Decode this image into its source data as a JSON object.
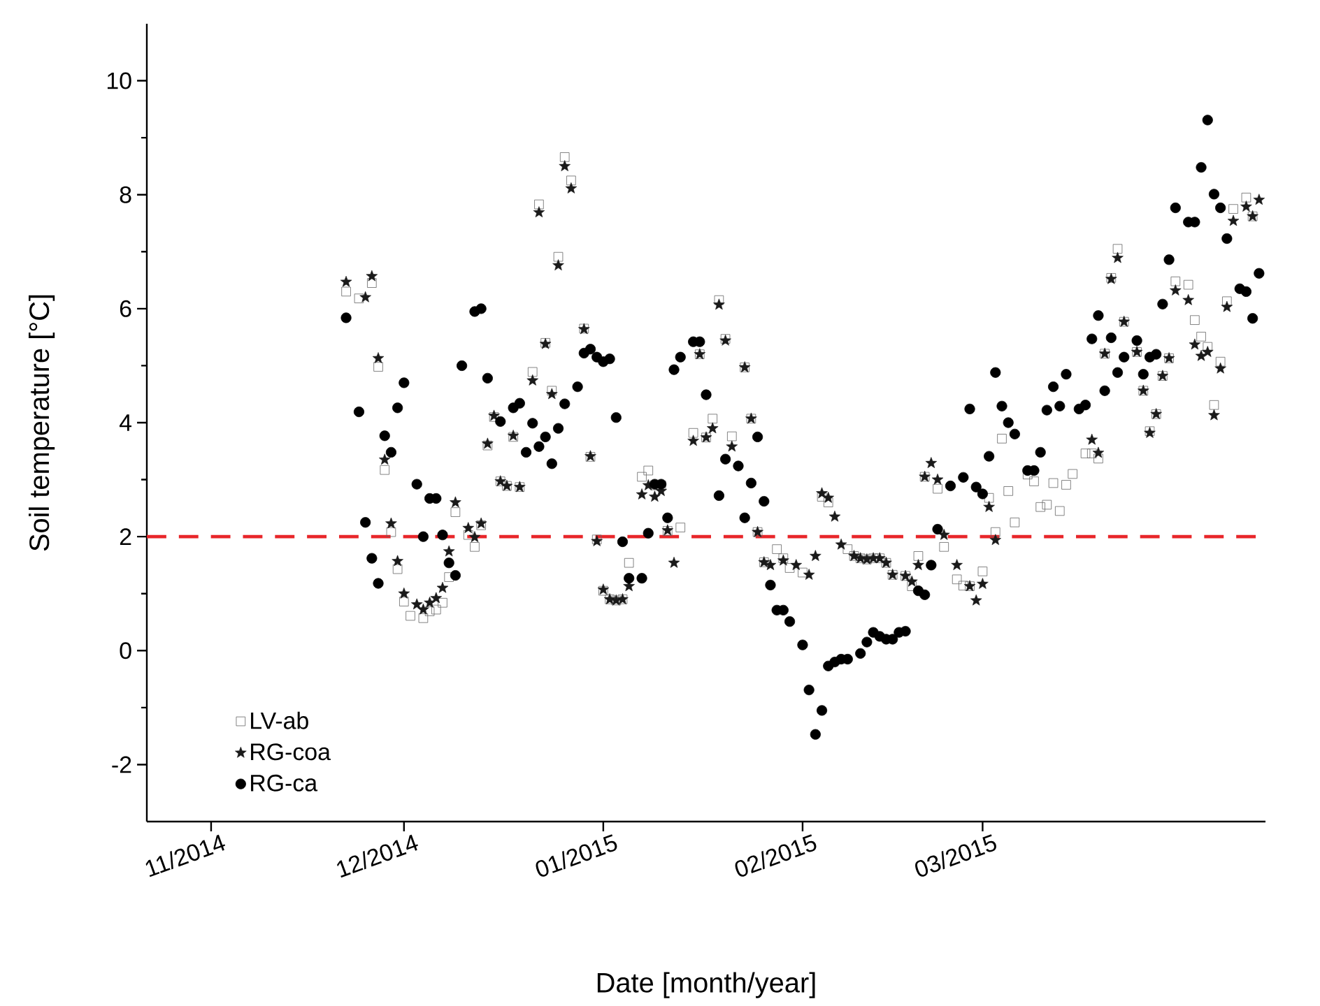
{
  "chart_data": {
    "type": "scatter",
    "xlabel": "Date [month/year]",
    "ylabel": "Soil temperature [°C]",
    "xlim": [
      "2014-10-22",
      "2015-04-14"
    ],
    "ylim": [
      -3,
      11
    ],
    "xticks": [
      {
        "value": "2014-11-01",
        "label": "11/2014"
      },
      {
        "value": "2014-12-01",
        "label": "12/2014"
      },
      {
        "value": "2015-01-01",
        "label": "01/2015"
      },
      {
        "value": "2015-02-01",
        "label": "02/2015"
      },
      {
        "value": "2015-03-01",
        "label": "03/2015"
      }
    ],
    "yticks": [
      -2,
      0,
      2,
      4,
      6,
      8,
      10
    ],
    "legend": "bottom left",
    "ref_lines": [
      {
        "axis": "y",
        "value": 2,
        "color": "#e8262a",
        "line_style": "dashed"
      }
    ],
    "series": [
      {
        "name": "LV-ab",
        "color": "#666666",
        "marker": "square",
        "x": [
          "2014-11-22",
          "2014-11-24",
          "2014-11-26",
          "2014-11-27",
          "2014-11-28",
          "2014-11-29",
          "2014-11-30",
          "2014-12-01",
          "2014-12-02",
          "2014-12-04",
          "2014-12-05",
          "2014-12-06",
          "2014-12-07",
          "2014-12-08",
          "2014-12-09",
          "2014-12-11",
          "2014-12-12",
          "2014-12-13",
          "2014-12-14",
          "2014-12-15",
          "2014-12-16",
          "2014-12-17",
          "2014-12-18",
          "2014-12-19",
          "2014-12-21",
          "2014-12-22",
          "2014-12-23",
          "2014-12-24",
          "2014-12-25",
          "2014-12-26",
          "2014-12-27",
          "2014-12-29",
          "2014-12-30",
          "2014-12-31",
          "2015-01-01",
          "2015-01-02",
          "2015-01-03",
          "2015-01-04",
          "2015-01-05",
          "2015-01-07",
          "2015-01-08",
          "2015-01-09",
          "2015-01-10",
          "2015-01-11",
          "2015-01-13",
          "2015-01-15",
          "2015-01-16",
          "2015-01-17",
          "2015-01-18",
          "2015-01-19",
          "2015-01-20",
          "2015-01-21",
          "2015-01-23",
          "2015-01-24",
          "2015-01-25",
          "2015-01-26",
          "2015-01-28",
          "2015-01-29",
          "2015-01-30",
          "2015-02-01",
          "2015-02-04",
          "2015-02-05",
          "2015-02-08",
          "2015-02-09",
          "2015-02-10",
          "2015-02-11",
          "2015-02-12",
          "2015-02-13",
          "2015-02-14",
          "2015-02-15",
          "2015-02-17",
          "2015-02-18",
          "2015-02-19",
          "2015-02-20",
          "2015-02-22",
          "2015-02-23",
          "2015-02-25",
          "2015-02-26",
          "2015-02-27",
          "2015-03-01",
          "2015-03-02",
          "2015-03-03",
          "2015-03-04",
          "2015-03-05",
          "2015-03-06",
          "2015-03-08",
          "2015-03-09",
          "2015-03-10",
          "2015-03-11",
          "2015-03-12",
          "2015-03-13",
          "2015-03-14",
          "2015-03-15",
          "2015-03-17",
          "2015-03-18",
          "2015-03-19",
          "2015-03-20",
          "2015-03-21",
          "2015-03-22",
          "2015-03-23",
          "2015-03-25",
          "2015-03-26",
          "2015-03-27",
          "2015-03-28",
          "2015-03-29",
          "2015-03-30",
          "2015-03-31",
          "2015-04-02",
          "2015-04-03",
          "2015-04-04",
          "2015-04-05",
          "2015-04-06",
          "2015-04-07",
          "2015-04-08",
          "2015-04-09",
          "2015-04-11",
          "2015-04-12"
        ],
        "values": [
          6.3,
          6.18,
          6.45,
          4.98,
          3.17,
          2.08,
          1.43,
          0.86,
          0.61,
          0.57,
          0.69,
          0.72,
          0.84,
          1.29,
          2.43,
          2.03,
          1.82,
          2.2,
          3.6,
          4.1,
          2.97,
          2.89,
          3.75,
          2.87,
          4.89,
          7.83,
          5.4,
          4.56,
          6.91,
          8.66,
          8.25,
          5.65,
          3.4,
          1.95,
          1.05,
          0.9,
          0.88,
          0.9,
          1.54,
          3.05,
          3.16,
          2.9,
          2.9,
          2.1,
          2.16,
          3.82,
          5.2,
          3.74,
          4.07,
          6.15,
          5.47,
          3.76,
          4.97,
          4.07,
          2.08,
          1.55,
          1.78,
          1.62,
          1.45,
          1.37,
          2.7,
          2.6,
          1.78,
          1.66,
          1.62,
          1.6,
          1.62,
          1.62,
          1.54,
          1.33,
          1.31,
          1.13,
          1.66,
          3.05,
          2.84,
          1.82,
          1.25,
          1.14,
          1.13,
          1.39,
          2.68,
          2.08,
          3.72,
          2.8,
          2.25,
          3.09,
          2.97,
          2.52,
          2.56,
          2.94,
          2.45,
          2.91,
          3.1,
          3.46,
          3.46,
          3.37,
          5.21,
          6.54,
          7.05,
          5.77,
          5.24,
          4.56,
          3.85,
          4.15,
          4.82,
          5.13,
          6.48,
          6.42,
          5.8,
          5.51,
          5.33,
          4.31,
          5.07,
          6.13,
          7.75,
          7.95,
          7.62
        ]
      },
      {
        "name": "RG-coa",
        "color": "#1a1a1a",
        "marker": "star",
        "x": [
          "2014-11-22",
          "2014-11-25",
          "2014-11-26",
          "2014-11-27",
          "2014-11-28",
          "2014-11-29",
          "2014-11-30",
          "2014-12-01",
          "2014-12-03",
          "2014-12-04",
          "2014-12-05",
          "2014-12-06",
          "2014-12-07",
          "2014-12-08",
          "2014-12-09",
          "2014-12-11",
          "2014-12-12",
          "2014-12-13",
          "2014-12-14",
          "2014-12-15",
          "2014-12-16",
          "2014-12-17",
          "2014-12-18",
          "2014-12-19",
          "2014-12-21",
          "2014-12-22",
          "2014-12-23",
          "2014-12-24",
          "2014-12-25",
          "2014-12-26",
          "2014-12-27",
          "2014-12-29",
          "2014-12-30",
          "2014-12-31",
          "2015-01-01",
          "2015-01-02",
          "2015-01-03",
          "2015-01-04",
          "2015-01-05",
          "2015-01-07",
          "2015-01-08",
          "2015-01-09",
          "2015-01-10",
          "2015-01-11",
          "2015-01-12",
          "2015-01-15",
          "2015-01-16",
          "2015-01-17",
          "2015-01-18",
          "2015-01-19",
          "2015-01-20",
          "2015-01-21",
          "2015-01-23",
          "2015-01-24",
          "2015-01-25",
          "2015-01-26",
          "2015-01-27",
          "2015-01-29",
          "2015-01-31",
          "2015-02-02",
          "2015-02-03",
          "2015-02-04",
          "2015-02-05",
          "2015-02-06",
          "2015-02-07",
          "2015-02-09",
          "2015-02-10",
          "2015-02-11",
          "2015-02-12",
          "2015-02-13",
          "2015-02-14",
          "2015-02-15",
          "2015-02-17",
          "2015-02-18",
          "2015-02-19",
          "2015-02-20",
          "2015-02-21",
          "2015-02-22",
          "2015-02-23",
          "2015-02-25",
          "2015-02-27",
          "2015-02-28",
          "2015-03-01",
          "2015-03-02",
          "2015-03-03",
          "2015-03-18",
          "2015-03-19",
          "2015-03-20",
          "2015-03-21",
          "2015-03-22",
          "2015-03-23",
          "2015-03-25",
          "2015-03-26",
          "2015-03-27",
          "2015-03-28",
          "2015-03-29",
          "2015-03-30",
          "2015-03-31",
          "2015-04-02",
          "2015-04-03",
          "2015-04-04",
          "2015-04-05",
          "2015-04-06",
          "2015-04-07",
          "2015-04-08",
          "2015-04-09",
          "2015-04-11",
          "2015-04-12",
          "2015-04-13"
        ],
        "values": [
          6.47,
          6.2,
          6.57,
          5.13,
          3.35,
          2.23,
          1.57,
          1.0,
          0.81,
          0.72,
          0.84,
          0.92,
          1.1,
          1.74,
          2.6,
          2.15,
          1.99,
          2.23,
          3.63,
          4.12,
          2.97,
          2.89,
          3.77,
          2.87,
          4.74,
          7.69,
          5.38,
          4.5,
          6.76,
          8.5,
          8.11,
          5.64,
          3.41,
          1.92,
          1.07,
          0.9,
          0.88,
          0.9,
          1.13,
          2.74,
          2.9,
          2.7,
          2.8,
          2.11,
          1.54,
          3.68,
          5.2,
          3.74,
          3.9,
          6.07,
          5.44,
          3.58,
          4.97,
          4.07,
          2.08,
          1.55,
          1.5,
          1.58,
          1.5,
          1.33,
          1.66,
          2.76,
          2.68,
          2.35,
          1.86,
          1.66,
          1.62,
          1.6,
          1.62,
          1.62,
          1.54,
          1.33,
          1.31,
          1.21,
          1.5,
          3.05,
          3.29,
          3.0,
          2.03,
          1.5,
          1.13,
          0.88,
          1.17,
          2.52,
          1.94,
          3.7,
          3.47,
          5.21,
          6.52,
          6.89,
          5.77,
          5.24,
          4.56,
          3.82,
          4.15,
          4.82,
          5.13,
          6.32,
          6.15,
          5.37,
          5.17,
          5.24,
          4.13,
          4.95,
          6.03,
          7.54,
          7.79,
          7.62,
          7.91
        ]
      },
      {
        "name": "RG-ca",
        "color": "#000000",
        "marker": "circle",
        "x": [
          "2014-11-22",
          "2014-11-24",
          "2014-11-25",
          "2014-11-26",
          "2014-11-27",
          "2014-11-28",
          "2014-11-29",
          "2014-11-30",
          "2014-12-01",
          "2014-12-03",
          "2014-12-04",
          "2014-12-05",
          "2014-12-06",
          "2014-12-07",
          "2014-12-08",
          "2014-12-09",
          "2014-12-10",
          "2014-12-12",
          "2014-12-13",
          "2014-12-14",
          "2014-12-16",
          "2014-12-18",
          "2014-12-19",
          "2014-12-20",
          "2014-12-21",
          "2014-12-22",
          "2014-12-23",
          "2014-12-24",
          "2014-12-25",
          "2014-12-26",
          "2014-12-28",
          "2014-12-29",
          "2014-12-30",
          "2014-12-31",
          "2015-01-01",
          "2015-01-02",
          "2015-01-03",
          "2015-01-04",
          "2015-01-05",
          "2015-01-07",
          "2015-01-08",
          "2015-01-09",
          "2015-01-10",
          "2015-01-11",
          "2015-01-12",
          "2015-01-13",
          "2015-01-15",
          "2015-01-16",
          "2015-01-17",
          "2015-01-19",
          "2015-01-20",
          "2015-01-22",
          "2015-01-23",
          "2015-01-24",
          "2015-01-25",
          "2015-01-26",
          "2015-01-27",
          "2015-01-28",
          "2015-01-29",
          "2015-01-30",
          "2015-02-01",
          "2015-02-02",
          "2015-02-03",
          "2015-02-04",
          "2015-02-05",
          "2015-02-06",
          "2015-02-07",
          "2015-02-08",
          "2015-02-10",
          "2015-02-11",
          "2015-02-12",
          "2015-02-13",
          "2015-02-14",
          "2015-02-15",
          "2015-02-16",
          "2015-02-17",
          "2015-02-19",
          "2015-02-20",
          "2015-02-21",
          "2015-02-22",
          "2015-02-24",
          "2015-02-26",
          "2015-02-27",
          "2015-02-28",
          "2015-03-01",
          "2015-03-02",
          "2015-03-03",
          "2015-03-04",
          "2015-03-05",
          "2015-03-06",
          "2015-03-08",
          "2015-03-09",
          "2015-03-10",
          "2015-03-11",
          "2015-03-12",
          "2015-03-13",
          "2015-03-14",
          "2015-03-16",
          "2015-03-17",
          "2015-03-18",
          "2015-03-19",
          "2015-03-20",
          "2015-03-21",
          "2015-03-22",
          "2015-03-23",
          "2015-03-25",
          "2015-03-26",
          "2015-03-27",
          "2015-03-28",
          "2015-03-29",
          "2015-03-30",
          "2015-03-31",
          "2015-04-02",
          "2015-04-03",
          "2015-04-04",
          "2015-04-05",
          "2015-04-06",
          "2015-04-07",
          "2015-04-08",
          "2015-04-10",
          "2015-04-11",
          "2015-04-12",
          "2015-04-13"
        ],
        "values": [
          5.84,
          4.19,
          2.25,
          1.62,
          1.18,
          3.77,
          3.48,
          4.26,
          4.7,
          2.92,
          2.0,
          2.67,
          2.67,
          2.03,
          1.54,
          1.32,
          5.0,
          5.95,
          6.0,
          4.78,
          4.02,
          4.26,
          4.34,
          3.48,
          3.99,
          3.58,
          3.75,
          3.28,
          3.9,
          4.33,
          4.63,
          5.22,
          5.29,
          5.15,
          5.07,
          5.12,
          4.09,
          1.91,
          1.27,
          1.27,
          2.06,
          2.92,
          2.92,
          2.33,
          4.93,
          5.15,
          5.42,
          5.42,
          4.49,
          2.72,
          3.36,
          3.24,
          2.33,
          2.94,
          3.75,
          2.62,
          1.15,
          0.71,
          0.71,
          0.51,
          0.1,
          -0.69,
          -1.47,
          -1.05,
          -0.27,
          -0.2,
          -0.15,
          -0.15,
          -0.05,
          0.15,
          0.32,
          0.25,
          0.2,
          0.2,
          0.32,
          0.34,
          1.05,
          0.98,
          1.5,
          2.13,
          2.89,
          3.04,
          4.24,
          2.87,
          2.75,
          3.41,
          4.88,
          4.29,
          4.0,
          3.8,
          3.16,
          3.16,
          3.48,
          4.22,
          4.63,
          4.29,
          4.85,
          4.24,
          4.31,
          5.47,
          5.88,
          4.56,
          5.49,
          4.88,
          5.15,
          5.44,
          4.85,
          5.15,
          5.2,
          6.08,
          6.86,
          7.77,
          7.52,
          7.52,
          8.48,
          9.31,
          8.01,
          7.77,
          7.23,
          6.35,
          6.3,
          5.83,
          6.62
        ]
      }
    ]
  }
}
